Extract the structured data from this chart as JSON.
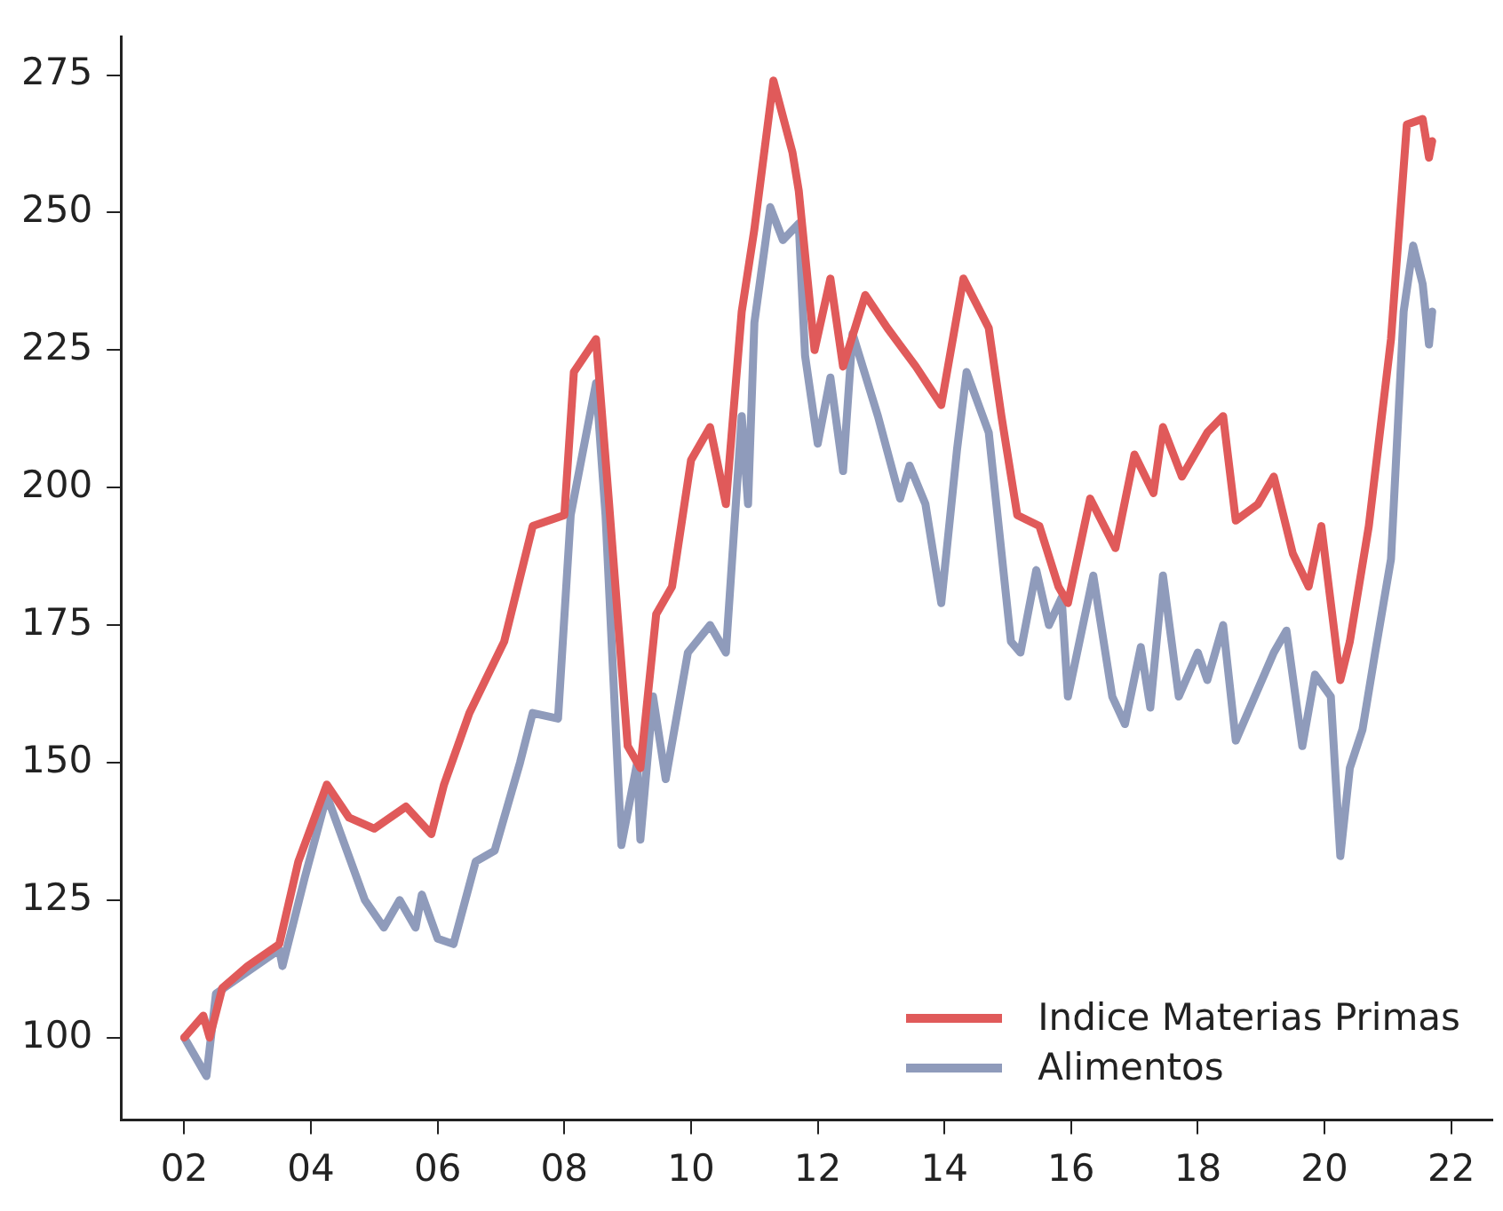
{
  "chart_data": {
    "type": "line",
    "legend": "bottom right",
    "marker": "none",
    "line_style": "solid",
    "grid": false,
    "xlim": [
      2001,
      2022.65
    ],
    "ylim": [
      85,
      282
    ],
    "xticks": [
      {
        "value": 2002,
        "label": "02"
      },
      {
        "value": 2004,
        "label": "04"
      },
      {
        "value": 2006,
        "label": "06"
      },
      {
        "value": 2008,
        "label": "08"
      },
      {
        "value": 2010,
        "label": "10"
      },
      {
        "value": 2012,
        "label": "12"
      },
      {
        "value": 2014,
        "label": "14"
      },
      {
        "value": 2016,
        "label": "16"
      },
      {
        "value": 2018,
        "label": "18"
      },
      {
        "value": 2020,
        "label": "20"
      },
      {
        "value": 2022,
        "label": "22"
      }
    ],
    "yticks": [
      100,
      125,
      150,
      175,
      200,
      225,
      250,
      275
    ],
    "series": [
      {
        "name": "Indice Materias Primas",
        "color": "#e05a5a",
        "x": [
          2002.0,
          2002.3,
          2002.4,
          2002.6,
          2003.0,
          2003.5,
          2003.8,
          2004.25,
          2004.6,
          2005.0,
          2005.5,
          2005.9,
          2006.1,
          2006.5,
          2007.05,
          2007.5,
          2008.0,
          2008.15,
          2008.5,
          2008.7,
          2009.0,
          2009.2,
          2009.45,
          2009.7,
          2010.0,
          2010.3,
          2010.55,
          2010.8,
          2011.0,
          2011.3,
          2011.6,
          2011.7,
          2011.95,
          2012.2,
          2012.4,
          2012.75,
          2013.1,
          2013.55,
          2013.95,
          2014.3,
          2014.7,
          2014.9,
          2015.15,
          2015.5,
          2015.8,
          2015.95,
          2016.3,
          2016.7,
          2017.0,
          2017.3,
          2017.45,
          2017.75,
          2018.15,
          2018.4,
          2018.6,
          2018.95,
          2019.2,
          2019.5,
          2019.75,
          2019.95,
          2020.25,
          2020.4,
          2020.7,
          2021.05,
          2021.3,
          2021.55,
          2021.65,
          2021.7
        ],
        "values": [
          100,
          104,
          100,
          109,
          113,
          117,
          132,
          146,
          140,
          138,
          142,
          137,
          146,
          159,
          172,
          193,
          195,
          221,
          227,
          198,
          153,
          149,
          177,
          182,
          205,
          211,
          197,
          232,
          247,
          274,
          261,
          254,
          225,
          238,
          222,
          235,
          229,
          222,
          215,
          238,
          229,
          213,
          195,
          193,
          182,
          179,
          198,
          189,
          206,
          199,
          211,
          202,
          210,
          213,
          194,
          197,
          202,
          188,
          182,
          193,
          165,
          172,
          193,
          227,
          266,
          267,
          260,
          263
        ]
      },
      {
        "name": "Alimentos",
        "color": "#8f9bbb",
        "x": [
          2002.0,
          2002.15,
          2002.35,
          2002.5,
          2003.0,
          2003.5,
          2003.55,
          2003.9,
          2004.25,
          2004.85,
          2005.15,
          2005.4,
          2005.65,
          2005.75,
          2006.0,
          2006.25,
          2006.6,
          2006.9,
          2007.3,
          2007.5,
          2007.9,
          2008.1,
          2008.5,
          2008.65,
          2008.9,
          2009.15,
          2009.2,
          2009.4,
          2009.6,
          2009.95,
          2010.3,
          2010.55,
          2010.8,
          2010.9,
          2011.0,
          2011.25,
          2011.45,
          2011.7,
          2011.8,
          2012.0,
          2012.2,
          2012.4,
          2012.55,
          2012.95,
          2013.3,
          2013.45,
          2013.7,
          2013.95,
          2014.2,
          2014.35,
          2014.7,
          2015.05,
          2015.2,
          2015.45,
          2015.65,
          2015.85,
          2015.95,
          2016.35,
          2016.65,
          2016.85,
          2017.1,
          2017.25,
          2017.45,
          2017.7,
          2018.0,
          2018.15,
          2018.4,
          2018.6,
          2018.9,
          2019.2,
          2019.4,
          2019.65,
          2019.85,
          2020.1,
          2020.25,
          2020.4,
          2020.6,
          2020.8,
          2021.05,
          2021.25,
          2021.4,
          2021.55,
          2021.65,
          2021.7
        ],
        "values": [
          100,
          97,
          93,
          108,
          112,
          116,
          113,
          129,
          144,
          125,
          120,
          125,
          120,
          126,
          118,
          117,
          132,
          134,
          150,
          159,
          158,
          195,
          219,
          195,
          135,
          150,
          136,
          162,
          147,
          170,
          175,
          170,
          213,
          197,
          230,
          251,
          245,
          248,
          224,
          208,
          220,
          203,
          228,
          213,
          198,
          204,
          197,
          179,
          207,
          221,
          210,
          172,
          170,
          185,
          175,
          180,
          162,
          184,
          162,
          157,
          171,
          160,
          184,
          162,
          170,
          165,
          175,
          154,
          162,
          170,
          174,
          153,
          166,
          162,
          133,
          149,
          156,
          170,
          187,
          232,
          244,
          237,
          226,
          232
        ]
      }
    ]
  }
}
